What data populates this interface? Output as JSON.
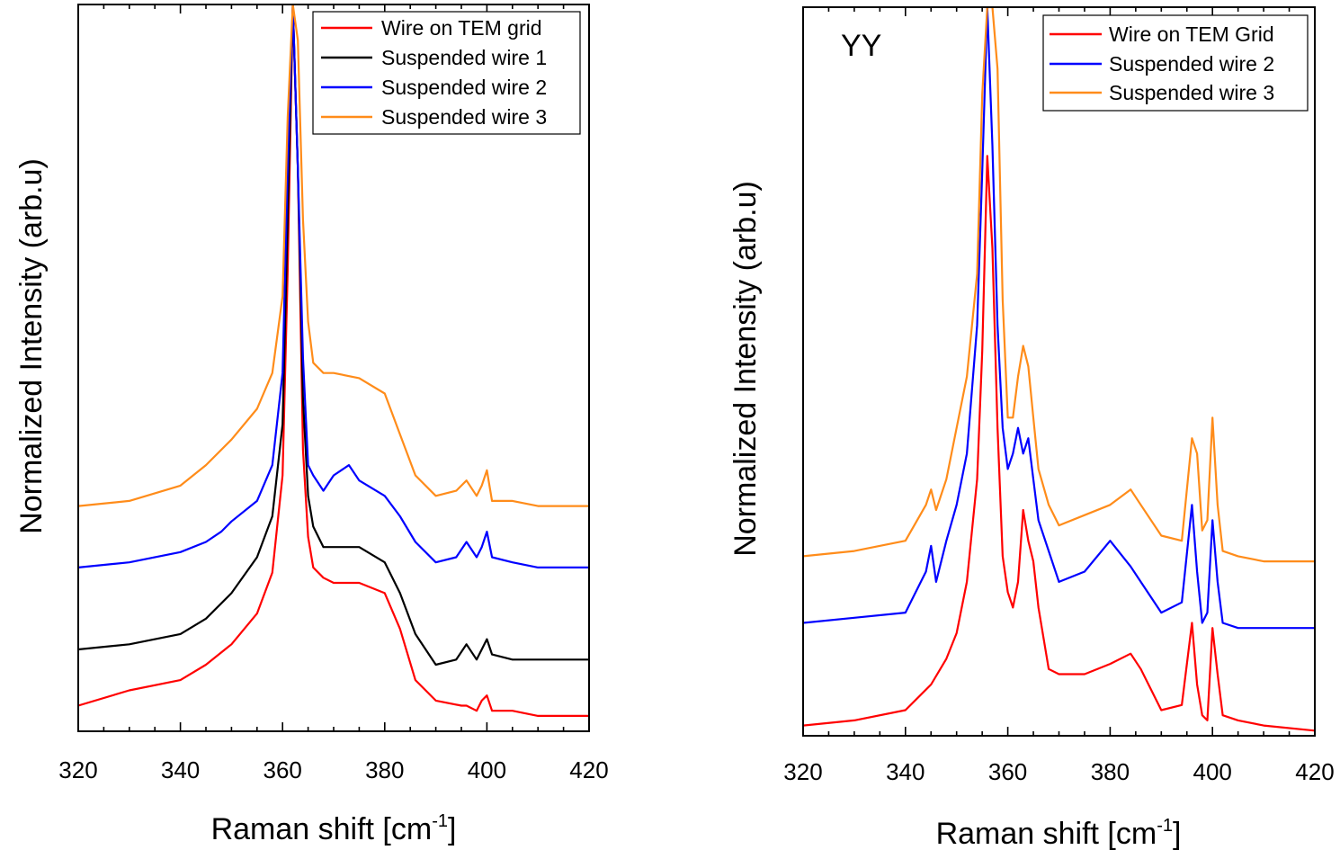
{
  "chart_data": [
    {
      "type": "line",
      "title": "",
      "annotation": "",
      "xlabel": "Raman shift [cm",
      "xlabel_sup": "-1",
      "xlabel_end": "]",
      "ylabel": "Normalized Intensity (arb.u)",
      "xlim": [
        320,
        420
      ],
      "ylim": [
        0,
        1.42
      ],
      "x_ticks": [
        "320",
        "340",
        "360",
        "380",
        "400",
        "420"
      ],
      "y_ticks_shown": false,
      "grid": false,
      "legend_position": "top-right",
      "series": [
        {
          "name": "Wire on TEM grid",
          "color": "#ff0000",
          "x": [
            320,
            330,
            340,
            345,
            350,
            355,
            358,
            360,
            361,
            362,
            363,
            364,
            365,
            366,
            368,
            370,
            375,
            380,
            383,
            386,
            390,
            395,
            396,
            398,
            399,
            400,
            401,
            405,
            410,
            420
          ],
          "y": [
            0.05,
            0.08,
            0.1,
            0.13,
            0.17,
            0.23,
            0.31,
            0.5,
            0.9,
            1.42,
            1.1,
            0.55,
            0.38,
            0.32,
            0.3,
            0.29,
            0.29,
            0.27,
            0.2,
            0.1,
            0.06,
            0.05,
            0.05,
            0.04,
            0.06,
            0.07,
            0.04,
            0.04,
            0.03,
            0.03
          ]
        },
        {
          "name": "Suspended wire 1",
          "color": "#000000",
          "x": [
            320,
            330,
            340,
            345,
            350,
            355,
            358,
            360,
            361,
            362,
            363,
            364,
            365,
            366,
            368,
            370,
            375,
            380,
            383,
            386,
            390,
            394,
            396,
            398,
            399,
            400,
            401,
            405,
            410,
            420
          ],
          "y": [
            0.16,
            0.17,
            0.19,
            0.22,
            0.27,
            0.34,
            0.42,
            0.6,
            1.0,
            1.42,
            1.1,
            0.65,
            0.46,
            0.4,
            0.36,
            0.36,
            0.36,
            0.33,
            0.27,
            0.19,
            0.13,
            0.14,
            0.17,
            0.14,
            0.16,
            0.18,
            0.15,
            0.14,
            0.14,
            0.14
          ]
        },
        {
          "name": "Suspended wire 2",
          "color": "#0000ff",
          "x": [
            320,
            330,
            340,
            345,
            348,
            350,
            355,
            358,
            360,
            361,
            362,
            363,
            364,
            365,
            366,
            368,
            370,
            373,
            375,
            380,
            383,
            386,
            390,
            394,
            396,
            398,
            399,
            400,
            401,
            405,
            410,
            420
          ],
          "y": [
            0.32,
            0.33,
            0.35,
            0.37,
            0.39,
            0.41,
            0.45,
            0.52,
            0.7,
            1.1,
            1.42,
            1.1,
            0.73,
            0.52,
            0.5,
            0.47,
            0.5,
            0.52,
            0.49,
            0.46,
            0.42,
            0.37,
            0.33,
            0.34,
            0.37,
            0.34,
            0.36,
            0.39,
            0.34,
            0.33,
            0.32,
            0.32
          ]
        },
        {
          "name": "Suspended wire 3",
          "color": "#ff8c1a",
          "x": [
            320,
            330,
            340,
            345,
            350,
            355,
            358,
            360,
            361,
            362,
            363,
            364,
            365,
            366,
            368,
            370,
            375,
            380,
            383,
            386,
            390,
            394,
            396,
            398,
            399,
            400,
            401,
            405,
            410,
            420
          ],
          "y": [
            0.44,
            0.45,
            0.48,
            0.52,
            0.57,
            0.63,
            0.7,
            0.85,
            1.2,
            1.42,
            1.35,
            1.0,
            0.8,
            0.72,
            0.7,
            0.7,
            0.69,
            0.66,
            0.58,
            0.5,
            0.46,
            0.47,
            0.49,
            0.46,
            0.48,
            0.51,
            0.45,
            0.45,
            0.44,
            0.44
          ]
        }
      ]
    },
    {
      "type": "line",
      "title": "",
      "annotation": "YY",
      "xlabel": "Raman shift [cm",
      "xlabel_sup": "-1",
      "xlabel_end": "]",
      "ylabel": "Normalized Intensity (arb.u)",
      "xlim": [
        320,
        420
      ],
      "ylim": [
        0,
        1.42
      ],
      "x_ticks": [
        "320",
        "340",
        "360",
        "380",
        "400",
        "420"
      ],
      "y_ticks_shown": false,
      "grid": false,
      "legend_position": "top-right",
      "series": [
        {
          "name": "Wire on TEM Grid",
          "color": "#ff0000",
          "x": [
            320,
            330,
            340,
            345,
            348,
            350,
            352,
            354,
            355,
            356,
            357,
            358,
            359,
            360,
            361,
            362,
            363,
            364,
            365,
            366,
            368,
            370,
            375,
            380,
            384,
            386,
            390,
            394,
            396,
            397,
            398,
            399,
            400,
            401,
            402,
            405,
            410,
            420
          ],
          "y": [
            0.02,
            0.03,
            0.05,
            0.1,
            0.15,
            0.2,
            0.3,
            0.5,
            0.75,
            1.13,
            0.95,
            0.6,
            0.35,
            0.28,
            0.25,
            0.3,
            0.44,
            0.38,
            0.34,
            0.25,
            0.13,
            0.12,
            0.12,
            0.14,
            0.16,
            0.13,
            0.05,
            0.06,
            0.22,
            0.1,
            0.04,
            0.03,
            0.21,
            0.12,
            0.04,
            0.03,
            0.02,
            0.01
          ]
        },
        {
          "name": "Suspended wire 2",
          "color": "#0000ff",
          "x": [
            320,
            330,
            340,
            344,
            345,
            346,
            348,
            350,
            352,
            354,
            355,
            356,
            357,
            358,
            359,
            360,
            361,
            362,
            363,
            364,
            365,
            366,
            368,
            370,
            375,
            380,
            384,
            386,
            390,
            394,
            396,
            397,
            398,
            399,
            400,
            401,
            402,
            405,
            410,
            420
          ],
          "y": [
            0.22,
            0.23,
            0.24,
            0.32,
            0.37,
            0.3,
            0.38,
            0.45,
            0.55,
            0.8,
            1.1,
            1.42,
            1.15,
            0.8,
            0.6,
            0.52,
            0.55,
            0.6,
            0.55,
            0.58,
            0.5,
            0.42,
            0.36,
            0.3,
            0.32,
            0.38,
            0.33,
            0.3,
            0.24,
            0.26,
            0.45,
            0.32,
            0.22,
            0.24,
            0.42,
            0.3,
            0.22,
            0.21,
            0.21,
            0.21
          ]
        },
        {
          "name": "Suspended wire 3",
          "color": "#ff8c1a",
          "x": [
            320,
            330,
            340,
            344,
            345,
            346,
            348,
            350,
            352,
            354,
            355,
            356,
            357,
            358,
            359,
            360,
            361,
            362,
            363,
            364,
            365,
            366,
            368,
            370,
            375,
            380,
            384,
            386,
            390,
            394,
            396,
            397,
            398,
            399,
            400,
            401,
            402,
            405,
            410,
            420
          ],
          "y": [
            0.35,
            0.36,
            0.38,
            0.45,
            0.48,
            0.44,
            0.5,
            0.6,
            0.7,
            0.9,
            1.25,
            1.42,
            1.42,
            1.3,
            0.85,
            0.62,
            0.62,
            0.7,
            0.76,
            0.72,
            0.62,
            0.52,
            0.45,
            0.41,
            0.43,
            0.45,
            0.48,
            0.45,
            0.39,
            0.38,
            0.58,
            0.55,
            0.4,
            0.42,
            0.62,
            0.45,
            0.36,
            0.35,
            0.34,
            0.34
          ]
        }
      ]
    }
  ]
}
